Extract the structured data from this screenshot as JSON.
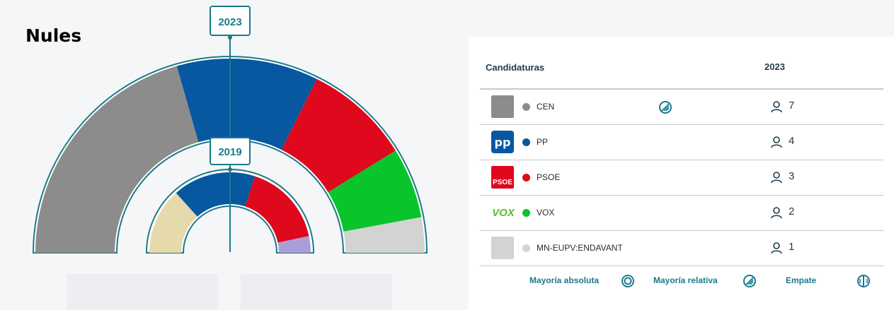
{
  "page": {
    "city": "Nules"
  },
  "chart_data": {
    "type": "hemicycle",
    "title": "Nules",
    "rings": [
      {
        "year": "2023",
        "label": "2023",
        "seats": [
          {
            "party": "CEN",
            "seats": 7,
            "color": "#8c8c8c"
          },
          {
            "party": "PP",
            "seats": 4,
            "color": "#0757a1"
          },
          {
            "party": "PSOE",
            "seats": 3,
            "color": "#e0081c"
          },
          {
            "party": "VOX",
            "seats": 2,
            "color": "#0ac42b"
          },
          {
            "party": "MN-EUPV:ENDAVANT",
            "seats": 1,
            "color": "#d3d3d3"
          }
        ]
      },
      {
        "year": "2019",
        "label": "2019",
        "seats": [
          {
            "party": "beige",
            "seats": 4,
            "color": "#e6d9ac"
          },
          {
            "party": "PP",
            "seats": 5,
            "color": "#0757a1"
          },
          {
            "party": "PSOE",
            "seats": 5,
            "color": "#e0081c"
          },
          {
            "party": "lilac",
            "seats": 1,
            "color": "#ab9ed6"
          }
        ]
      }
    ]
  },
  "table": {
    "header_candidaturas": "Candidaturas",
    "header_year": "2023",
    "rows": [
      {
        "name": "CEN",
        "seats": "7",
        "dot_color": "#8c8c8c",
        "logo": "cen-logo",
        "logo_bg": "#8c8c8c",
        "logo_text": "",
        "status": "majority-relative"
      },
      {
        "name": "PP",
        "seats": "4",
        "dot_color": "#0757a1",
        "logo": "pp-logo",
        "logo_bg": "#0757a1",
        "logo_text": "pp",
        "status": ""
      },
      {
        "name": "PSOE",
        "seats": "3",
        "dot_color": "#e0081c",
        "logo": "psoe-logo",
        "logo_bg": "#e0081c",
        "logo_text": "PSOE",
        "status": ""
      },
      {
        "name": "VOX",
        "seats": "2",
        "dot_color": "#0ac42b",
        "logo": "vox-logo",
        "logo_bg": "transparent",
        "logo_text": "VOX",
        "status": ""
      },
      {
        "name": "MN-EUPV:ENDAVANT",
        "seats": "1",
        "dot_color": "#d3d3d3",
        "logo": "mn-logo",
        "logo_bg": "#d3d3d3",
        "logo_text": "",
        "status": ""
      }
    ]
  },
  "legend": {
    "absolute": "Mayoría absoluta",
    "relative": "Mayoría relativa",
    "tie": "Empate"
  },
  "colors": {
    "accent": "#1b7a8f",
    "ring_border": "#1a7a8b"
  }
}
